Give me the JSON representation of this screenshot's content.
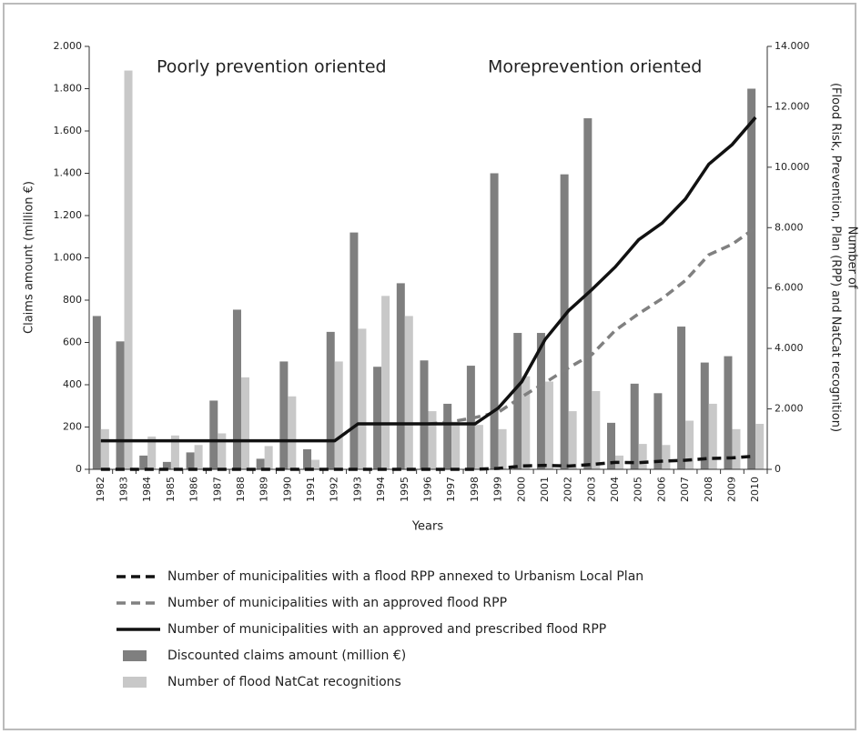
{
  "chart_data": {
    "type": "bar-line",
    "annotations": [
      "Poorly prevention oriented",
      "Moreprevention oriented"
    ],
    "ylabel": "Claims amount (million €)",
    "xlabel": "Years",
    "y2label": [
      "Number of",
      "(Flood Risk, Prevention, Plan (RPP) and NatCat recognition)"
    ],
    "categories": [
      "1982",
      "1983",
      "1984",
      "1985",
      "1986",
      "1987",
      "1988",
      "1989",
      "1990",
      "1991",
      "1992",
      "1993",
      "1994",
      "1995",
      "1996",
      "1997",
      "1998",
      "1999",
      "2000",
      "2001",
      "2002",
      "2003",
      "2004",
      "2005",
      "2006",
      "2007",
      "2008",
      "2009",
      "2010"
    ],
    "ylim": [
      0,
      2000
    ],
    "yticks": [
      0,
      200,
      400,
      600,
      800,
      {
        "value": 1000,
        "label": "1.000"
      },
      {
        "value": 1200,
        "label": "1.200"
      },
      {
        "value": 1400,
        "label": "1.400"
      },
      {
        "value": 1600,
        "label": "1.600"
      },
      {
        "value": 1800,
        "label": "1.800"
      },
      {
        "value": 2000,
        "label": "2.000"
      }
    ],
    "y2lim": [
      0,
      14000
    ],
    "y2ticks": [
      0,
      {
        "value": 2000,
        "label": "2.000"
      },
      {
        "value": 4000,
        "label": "4.000"
      },
      {
        "value": 6000,
        "label": "6.000"
      },
      {
        "value": 8000,
        "label": "8.000"
      },
      {
        "value": 10000,
        "label": "10.000"
      },
      {
        "value": 12000,
        "label": "12.000"
      },
      {
        "value": 14000,
        "label": "14.000"
      }
    ],
    "series": [
      {
        "name": "Number of municipalities with a flood RPP annexed to Urbanism Local Plan",
        "kind": "line",
        "dash": true,
        "color": "#111111",
        "axis": "y2",
        "values": [
          0,
          0,
          0,
          0,
          0,
          0,
          0,
          0,
          0,
          0,
          0,
          0,
          0,
          0,
          0,
          0,
          0,
          30,
          110,
          130,
          110,
          160,
          230,
          220,
          270,
          300,
          360,
          380,
          440
        ]
      },
      {
        "name": "Number of municipalities with an approved flood RPP",
        "kind": "line",
        "dash": true,
        "color": "#808080",
        "axis": "y2",
        "values": [
          null,
          null,
          null,
          null,
          null,
          null,
          null,
          null,
          null,
          null,
          null,
          null,
          null,
          null,
          1500,
          1575,
          1715,
          1890,
          2400,
          2870,
          3360,
          3800,
          4600,
          5150,
          5650,
          6250,
          7100,
          7450,
          8000
        ]
      },
      {
        "name": "Number of municipalities with an approved and prescribed flood RPP",
        "kind": "line",
        "dash": false,
        "color": "#111111",
        "axis": "y2",
        "values": [
          945,
          945,
          945,
          945,
          945,
          945,
          945,
          945,
          945,
          945,
          945,
          1505,
          1505,
          1505,
          1505,
          1505,
          1505,
          2030,
          2900,
          4300,
          5250,
          5950,
          6700,
          7600,
          8150,
          8950,
          10100,
          10750,
          11650
        ]
      },
      {
        "name": "Discounted claims amount (million €)",
        "kind": "bar",
        "color": "#7f7f7f",
        "axis": "y",
        "values": [
          725,
          605,
          65,
          35,
          80,
          325,
          755,
          50,
          510,
          95,
          650,
          1120,
          485,
          880,
          515,
          310,
          490,
          1400,
          645,
          645,
          1395,
          1660,
          220,
          405,
          360,
          675,
          505,
          535,
          1800
        ]
      },
      {
        "name": "Number of flood NatCat recognitions",
        "kind": "bar",
        "color": "#c8c8c8",
        "axis": "y2",
        "values": [
          1330,
          13200,
          1085,
          1120,
          805,
          1190,
          3045,
          770,
          2415,
          315,
          3570,
          4655,
          5740,
          5075,
          1925,
          1575,
          1470,
          1330,
          3080,
          2905,
          1925,
          2590,
          455,
          840,
          805,
          1610,
          2170,
          1330,
          1505
        ]
      }
    ]
  }
}
